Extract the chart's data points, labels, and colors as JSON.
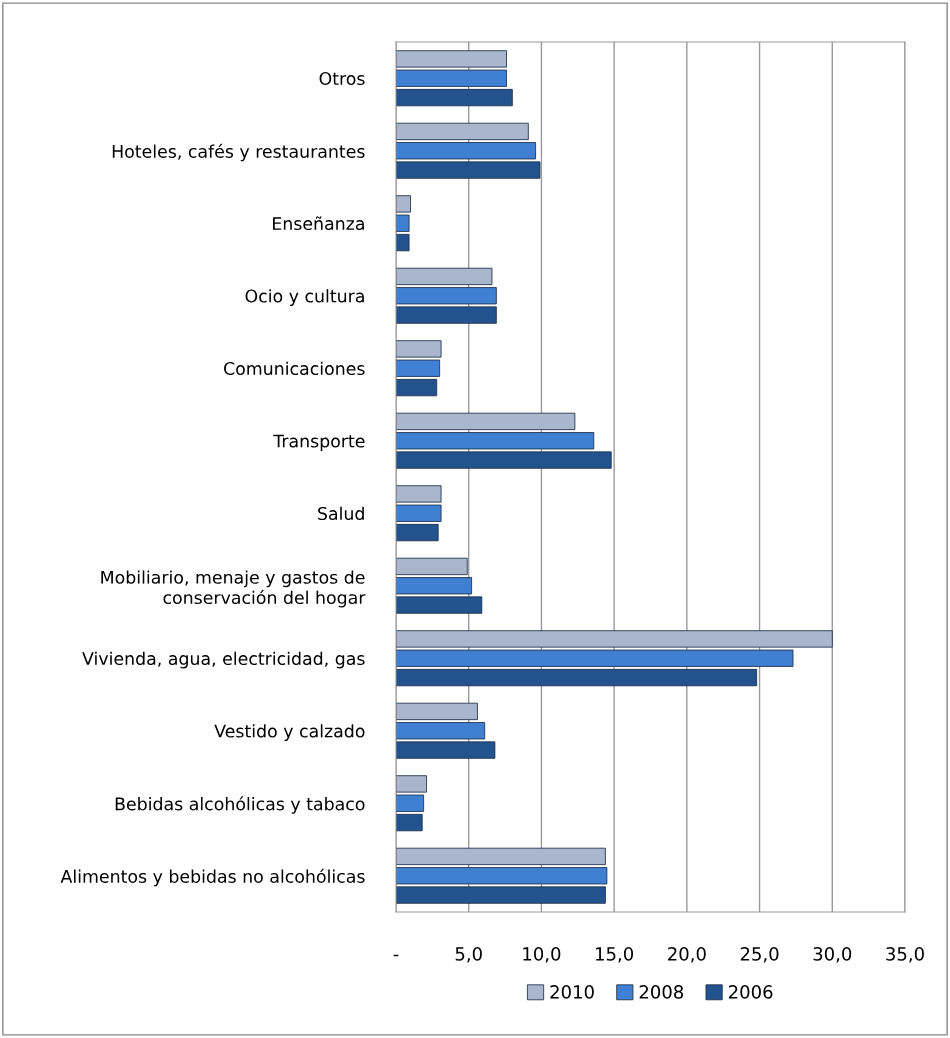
{
  "chart_data": {
    "type": "bar",
    "orientation": "horizontal",
    "categories": [
      "Otros",
      "Hoteles, cafés y restaurantes",
      "Enseñanza",
      "Ocio y cultura",
      "Comunicaciones",
      "Transporte",
      "Salud",
      "Mobiliario, menaje y gastos de\nconservación del hogar",
      "Vivienda, agua, electricidad, gas",
      "Vestido y calzado",
      "Bebidas alcohólicas y tabaco",
      "Alimentos y bebidas no alcohólicas"
    ],
    "series": [
      {
        "name": "2010",
        "color": "#a9b6cc",
        "values": [
          7.6,
          9.1,
          1.0,
          6.6,
          3.1,
          12.3,
          3.1,
          4.9,
          30.0,
          5.6,
          2.1,
          14.4
        ]
      },
      {
        "name": "2008",
        "color": "#3f80d2",
        "values": [
          7.6,
          9.6,
          0.9,
          6.9,
          3.0,
          13.6,
          3.1,
          5.2,
          27.3,
          6.1,
          1.9,
          14.5
        ]
      },
      {
        "name": "2006",
        "color": "#22538f",
        "values": [
          8.0,
          9.9,
          0.9,
          6.9,
          2.8,
          14.8,
          2.9,
          5.9,
          24.8,
          6.8,
          1.8,
          14.4
        ]
      }
    ],
    "xlim": [
      0,
      35
    ],
    "xticks": [
      {
        "value": 0,
        "label": "-"
      },
      {
        "value": 5,
        "label": "5,0"
      },
      {
        "value": 10,
        "label": "10,0"
      },
      {
        "value": 15,
        "label": "15,0"
      },
      {
        "value": 20,
        "label": "20,0"
      },
      {
        "value": 25,
        "label": "25,0"
      },
      {
        "value": 30,
        "label": "30,0"
      },
      {
        "value": 35,
        "label": "35,0"
      }
    ],
    "grid": "x",
    "legend": "bottom"
  }
}
